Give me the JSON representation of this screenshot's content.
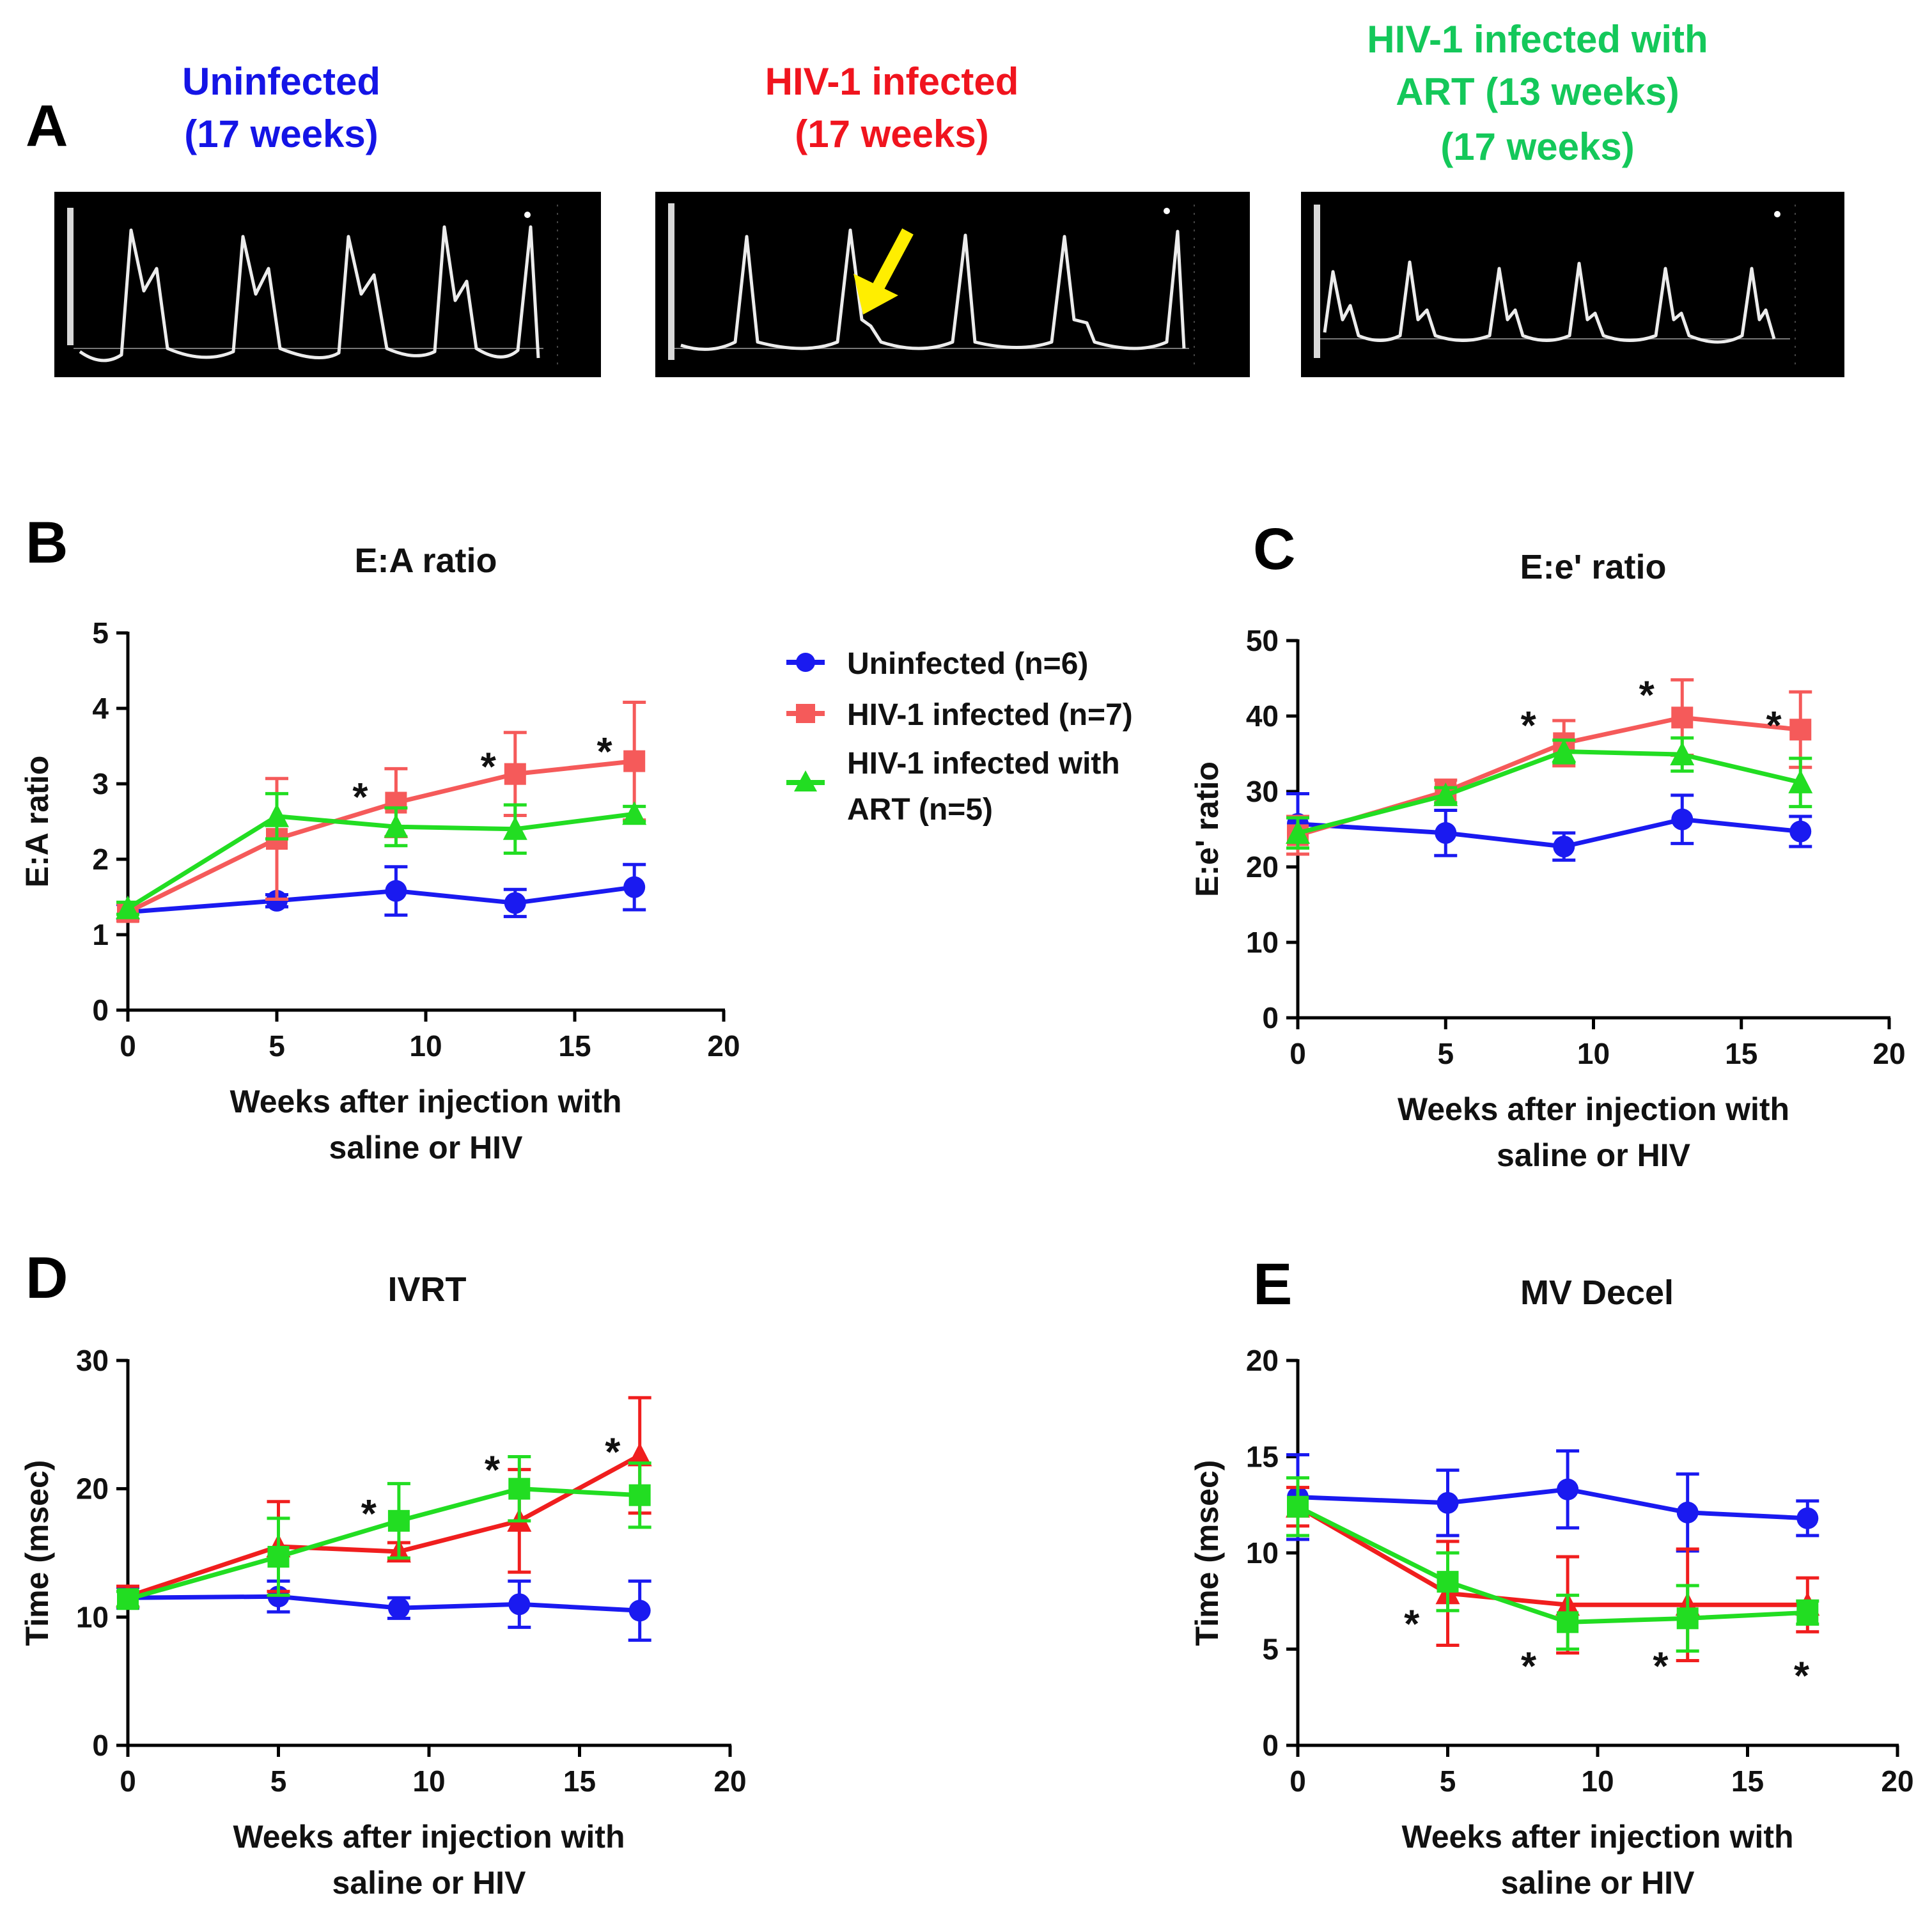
{
  "panelA": {
    "letter": "A",
    "images": [
      {
        "caption_lines": [
          "Uninfected",
          "(17 weeks)"
        ],
        "color": "#1414e6",
        "arrow": false
      },
      {
        "caption_lines": [
          "HIV-1 infected",
          "(17 weeks)"
        ],
        "color": "#f0141e",
        "arrow": true
      },
      {
        "caption_lines": [
          "HIV-1 infected with",
          "ART (13 weeks)",
          "(17 weeks)"
        ],
        "color": "#14c85a",
        "arrow": false
      }
    ]
  },
  "legend": {
    "entries": [
      {
        "lines": [
          "Uninfected (n=6)"
        ],
        "color": "#1a1af0",
        "marker": "circle"
      },
      {
        "lines": [
          "HIV-1 infected (n=7)"
        ],
        "color": "#f55a5a",
        "marker": "square"
      },
      {
        "lines": [
          "HIV-1 infected with",
          "ART  (n=5)"
        ],
        "color": "#22dd22",
        "marker": "triangle"
      }
    ]
  },
  "colors": {
    "uninfected": "#1a1af0",
    "hiv": "#f55a5a",
    "hiv_dark": "#f01e1e",
    "art": "#22dd22"
  },
  "chart_data": [
    {
      "type": "line",
      "panel": "B",
      "title": "E:A ratio",
      "xlabel": [
        "Weeks after injection with",
        "saline or HIV"
      ],
      "ylabel": "E:A ratio",
      "xlim": [
        0,
        20
      ],
      "xticks": [
        "0",
        "5",
        "10",
        "15",
        "20"
      ],
      "ylim": [
        0,
        5
      ],
      "yticks": [
        "0",
        "1",
        "2",
        "3",
        "4",
        "5"
      ],
      "x": [
        0,
        5,
        9,
        13,
        17
      ],
      "series": [
        {
          "name": "Uninfected (n=6)",
          "color": "#1a1af0",
          "marker": "circle",
          "values": [
            1.3,
            1.45,
            1.58,
            1.42,
            1.63
          ],
          "errors": [
            0.1,
            0.08,
            0.32,
            0.18,
            0.3
          ]
        },
        {
          "name": "HIV-1 infected (n=7)",
          "color": "#f55a5a",
          "marker": "square",
          "values": [
            1.3,
            2.27,
            2.75,
            3.13,
            3.3
          ],
          "errors": [
            0.12,
            0.8,
            0.45,
            0.55,
            0.78
          ]
        },
        {
          "name": "HIV-1 infected with ART (n=5)",
          "color": "#22dd22",
          "marker": "triangle",
          "values": [
            1.35,
            2.57,
            2.43,
            2.4,
            2.6
          ],
          "errors": [
            0.08,
            0.3,
            0.25,
            0.32,
            0.1
          ]
        }
      ],
      "annotations": [
        {
          "text": "*",
          "x": 7.8,
          "y": 2.9
        },
        {
          "text": "*",
          "x": 12.1,
          "y": 3.3
        },
        {
          "text": "*",
          "x": 16,
          "y": 3.5
        }
      ]
    },
    {
      "type": "line",
      "panel": "C",
      "title": "E:e' ratio",
      "xlabel": [
        "Weeks after injection with",
        "saline or HIV"
      ],
      "ylabel": "E:e' ratio",
      "xlim": [
        0,
        20
      ],
      "xticks": [
        "0",
        "5",
        "10",
        "15",
        "20"
      ],
      "ylim": [
        0,
        50
      ],
      "yticks": [
        "0",
        "10",
        "20",
        "30",
        "40",
        "50"
      ],
      "x": [
        0,
        5,
        9,
        13,
        17
      ],
      "series": [
        {
          "name": "Uninfected (n=6)",
          "color": "#1a1af0",
          "marker": "circle",
          "values": [
            25.7,
            24.5,
            22.7,
            26.3,
            24.7
          ],
          "errors": [
            4,
            3,
            1.8,
            3.2,
            2
          ]
        },
        {
          "name": "HIV-1 infected (n=7)",
          "color": "#f55a5a",
          "marker": "square",
          "values": [
            24.2,
            30,
            36.4,
            39.8,
            38.2
          ],
          "errors": [
            2.5,
            1.5,
            3,
            5,
            5
          ]
        },
        {
          "name": "HIV-1 infected with ART (n=5)",
          "color": "#22dd22",
          "marker": "triangle",
          "values": [
            24.5,
            29.5,
            35.3,
            34.9,
            31.2
          ],
          "errors": [
            2,
            1,
            1.5,
            2.2,
            3.2
          ]
        }
      ],
      "annotations": [
        {
          "text": "*",
          "x": 7.8,
          "y": 39.5
        },
        {
          "text": "*",
          "x": 11.8,
          "y": 43.5
        },
        {
          "text": "*",
          "x": 16.1,
          "y": 39.5
        }
      ]
    },
    {
      "type": "line",
      "panel": "D",
      "title": "IVRT",
      "xlabel": [
        "Weeks after injection with",
        "saline or HIV"
      ],
      "ylabel": "Time (msec)",
      "xlim": [
        0,
        20
      ],
      "xticks": [
        "0",
        "5",
        "10",
        "15",
        "20"
      ],
      "ylim": [
        0,
        30
      ],
      "yticks": [
        "0",
        "10",
        "20",
        "30"
      ],
      "x": [
        0,
        5,
        9,
        13,
        17
      ],
      "series": [
        {
          "name": "Uninfected (n=6)",
          "color": "#1a1af0",
          "marker": "circle",
          "values": [
            11.5,
            11.6,
            10.7,
            11,
            10.5
          ],
          "errors": [
            0.8,
            1.2,
            0.8,
            1.8,
            2.3
          ]
        },
        {
          "name": "HIV-1 infected (n=7)",
          "color": "#f01e1e",
          "marker": "triangle",
          "values": [
            11.6,
            15.5,
            15.1,
            17.5,
            22.6
          ],
          "errors": [
            0.8,
            3.5,
            0.7,
            4,
            4.5
          ]
        },
        {
          "name": "HIV-1 infected with ART (n=5)",
          "color": "#22dd22",
          "marker": "square",
          "values": [
            11.4,
            14.7,
            17.5,
            20,
            19.5
          ],
          "errors": [
            0.6,
            3,
            2.9,
            2.5,
            2.5
          ]
        }
      ],
      "annotations": [
        {
          "text": "*",
          "x": 8,
          "y": 18.5
        },
        {
          "text": "*",
          "x": 12.1,
          "y": 21.9
        },
        {
          "text": "*",
          "x": 16.1,
          "y": 23.3
        }
      ]
    },
    {
      "type": "line",
      "panel": "E",
      "title": "MV Decel",
      "xlabel": [
        "Weeks after injection with",
        "saline or HIV"
      ],
      "ylabel": "Time (msec)",
      "xlim": [
        0,
        20
      ],
      "xticks": [
        "0",
        "5",
        "10",
        "15",
        "20"
      ],
      "ylim": [
        0,
        20
      ],
      "yticks": [
        "0",
        "5",
        "10",
        "15",
        "20"
      ],
      "x": [
        0,
        5,
        9,
        13,
        17
      ],
      "series": [
        {
          "name": "Uninfected (n=6)",
          "color": "#1a1af0",
          "marker": "circle",
          "values": [
            12.9,
            12.6,
            13.3,
            12.1,
            11.8
          ],
          "errors": [
            2.2,
            1.7,
            2,
            2,
            0.9
          ]
        },
        {
          "name": "HIV-1 infected (n=7)",
          "color": "#f01e1e",
          "marker": "triangle",
          "values": [
            12.4,
            7.9,
            7.3,
            7.3,
            7.3
          ],
          "errors": [
            1,
            2.7,
            2.5,
            2.9,
            1.4
          ]
        },
        {
          "name": "HIV-1 infected with ART (n=5)",
          "color": "#22dd22",
          "marker": "square",
          "values": [
            12.4,
            8.5,
            6.4,
            6.6,
            6.9
          ],
          "errors": [
            1.5,
            1.5,
            1.4,
            1.7,
            0.6
          ]
        }
      ],
      "annotations": [
        {
          "text": "*",
          "x": 3.8,
          "y": 6.6
        },
        {
          "text": "*",
          "x": 7.7,
          "y": 4.4
        },
        {
          "text": "*",
          "x": 12.1,
          "y": 4.4
        },
        {
          "text": "*",
          "x": 16.8,
          "y": 3.9
        }
      ]
    }
  ]
}
